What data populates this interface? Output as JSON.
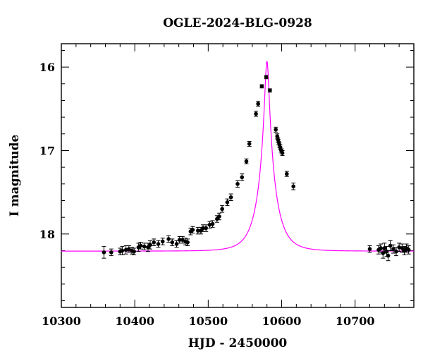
{
  "chart_data": {
    "type": "scatter",
    "title": "OGLE-2024-BLG-0928",
    "xlabel": "HJD - 2450000",
    "ylabel": "I magnitude",
    "xlim": [
      10300,
      10780
    ],
    "ylim": [
      18.88,
      15.72
    ],
    "y_inverted": true,
    "x_major_ticks": [
      10300,
      10400,
      10500,
      10600,
      10700
    ],
    "x_tick_labels": [
      "10300",
      "10400",
      "10500",
      "10600",
      "10700"
    ],
    "x_minor_step": 20,
    "y_major_ticks": [
      16,
      17,
      18
    ],
    "y_tick_labels": [
      "16",
      "17",
      "18"
    ],
    "y_minor_step": 0.2,
    "grid": false,
    "colors": {
      "data": "#000000",
      "model": "#ff00ff",
      "axes": "#000000"
    },
    "series": [
      {
        "type": "scatter_errorbars",
        "points": [
          [
            10358,
            18.22,
            0.07
          ],
          [
            10368,
            18.22,
            0.04
          ],
          [
            10380,
            18.21,
            0.04
          ],
          [
            10383,
            18.2,
            0.05
          ],
          [
            10388,
            18.19,
            0.05
          ],
          [
            10392,
            18.18,
            0.04
          ],
          [
            10396,
            18.2,
            0.04
          ],
          [
            10399,
            18.21,
            0.04
          ],
          [
            10405,
            18.16,
            0.05
          ],
          [
            10408,
            18.14,
            0.04
          ],
          [
            10413,
            18.15,
            0.04
          ],
          [
            10418,
            18.16,
            0.05
          ],
          [
            10421,
            18.13,
            0.05
          ],
          [
            10426,
            18.1,
            0.04
          ],
          [
            10432,
            18.12,
            0.04
          ],
          [
            10438,
            18.09,
            0.04
          ],
          [
            10446,
            18.06,
            0.04
          ],
          [
            10451,
            18.1,
            0.04
          ],
          [
            10457,
            18.12,
            0.04
          ],
          [
            10461,
            18.07,
            0.04
          ],
          [
            10465,
            18.07,
            0.04
          ],
          [
            10469,
            18.09,
            0.04
          ],
          [
            10472,
            18.1,
            0.04
          ],
          [
            10476,
            17.97,
            0.04
          ],
          [
            10479,
            17.95,
            0.04
          ],
          [
            10486,
            17.96,
            0.04
          ],
          [
            10490,
            17.96,
            0.04
          ],
          [
            10493,
            17.93,
            0.04
          ],
          [
            10497,
            17.93,
            0.04
          ],
          [
            10502,
            17.89,
            0.04
          ],
          [
            10506,
            17.88,
            0.04
          ],
          [
            10512,
            17.82,
            0.04
          ],
          [
            10515,
            17.79,
            0.04
          ],
          [
            10519,
            17.7,
            0.04
          ],
          [
            10526,
            17.62,
            0.04
          ],
          [
            10531,
            17.56,
            0.04
          ],
          [
            10540,
            17.4,
            0.04
          ],
          [
            10546,
            17.32,
            0.04
          ],
          [
            10552,
            17.13,
            0.03
          ],
          [
            10556,
            16.92,
            0.03
          ],
          [
            10565,
            16.56,
            0.03
          ],
          [
            10568,
            16.44,
            0.03
          ],
          [
            10573,
            16.23,
            0.02
          ],
          [
            10579,
            16.12,
            0.02
          ],
          [
            10584,
            16.28,
            0.02
          ],
          [
            10592,
            16.75,
            0.03
          ],
          [
            10594,
            16.83,
            0.03
          ],
          [
            10595,
            16.87,
            0.03
          ],
          [
            10596,
            16.9,
            0.03
          ],
          [
            10597,
            16.93,
            0.03
          ],
          [
            10598,
            16.96,
            0.03
          ],
          [
            10599,
            16.99,
            0.03
          ],
          [
            10600,
            17.01,
            0.03
          ],
          [
            10601,
            17.03,
            0.03
          ],
          [
            10607,
            17.28,
            0.03
          ],
          [
            10616,
            17.43,
            0.04
          ],
          [
            10720,
            18.18,
            0.04
          ],
          [
            10732,
            18.19,
            0.05
          ],
          [
            10735,
            18.17,
            0.05
          ],
          [
            10738,
            18.23,
            0.06
          ],
          [
            10740,
            18.17,
            0.06
          ],
          [
            10743,
            18.21,
            0.06
          ],
          [
            10745,
            18.26,
            0.06
          ],
          [
            10748,
            18.14,
            0.06
          ],
          [
            10752,
            18.18,
            0.05
          ],
          [
            10756,
            18.21,
            0.05
          ],
          [
            10760,
            18.16,
            0.05
          ],
          [
            10764,
            18.17,
            0.05
          ],
          [
            10767,
            18.2,
            0.05
          ],
          [
            10770,
            18.17,
            0.05
          ],
          [
            10773,
            18.19,
            0.05
          ]
        ]
      },
      {
        "type": "model_curve",
        "t0": 10580,
        "tE": 22,
        "u0": 0.1235,
        "baseline_mag": 18.205
      }
    ]
  }
}
